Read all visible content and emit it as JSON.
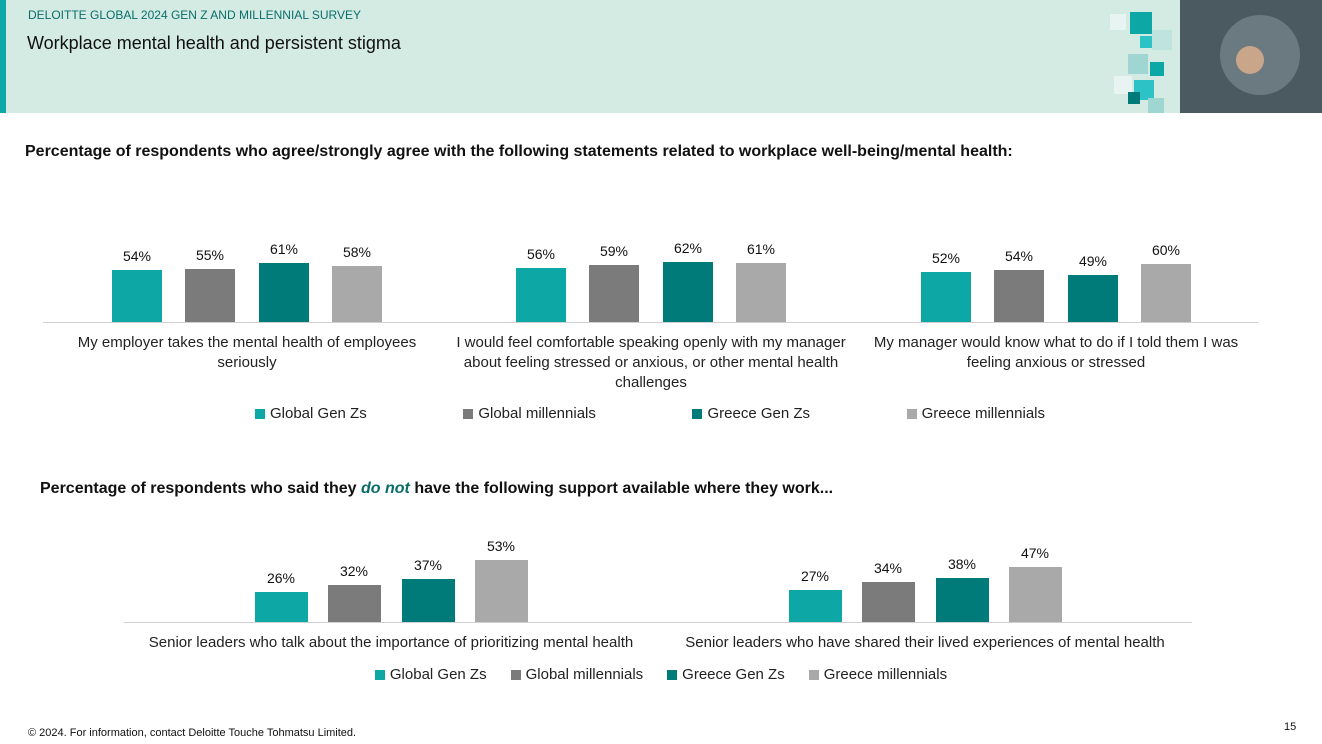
{
  "header": {
    "survey": "DELOITTE GLOBAL 2024 GEN Z AND MILLENNIAL SURVEY",
    "title": "Workplace mental health and persistent stigma"
  },
  "chart_data": [
    {
      "type": "bar",
      "title": "Percentage of respondents who agree/strongly agree with the following statements related to workplace well-being/mental health:",
      "categories": [
        "My employer takes the mental health of employees seriously",
        "I would feel comfortable speaking openly with my manager about feeling stressed or anxious, or other mental health challenges",
        "My manager would know what to do if I told them I was feeling anxious or stressed"
      ],
      "ylim": [
        0,
        100
      ],
      "series": [
        {
          "name": "Global Gen Zs",
          "color": "#0da7a5",
          "values": [
            54,
            56,
            52
          ],
          "value_labels": [
            "54%",
            "56%",
            "52%"
          ]
        },
        {
          "name": "Global millennials",
          "color": "#7b7b7b",
          "values": [
            55,
            59,
            54
          ],
          "value_labels": [
            "55%",
            "59%",
            "54%"
          ]
        },
        {
          "name": "Greece Gen Zs",
          "color": "#007b79",
          "values": [
            61,
            62,
            49
          ],
          "value_labels": [
            "61%",
            "62%",
            "49%"
          ]
        },
        {
          "name": "Greece millennials",
          "color": "#a9a9a9",
          "values": [
            58,
            61,
            60
          ],
          "value_labels": [
            "58%",
            "61%",
            "60%"
          ]
        }
      ]
    },
    {
      "type": "bar",
      "title": [
        "Percentage of respondents who said they",
        "do not",
        "have the following support available where they work..."
      ],
      "categories": [
        "Senior leaders who talk about the importance of prioritizing mental health",
        "Senior leaders who have shared their lived experiences of mental health"
      ],
      "ylim": [
        0,
        100
      ],
      "series": [
        {
          "name": "Global Gen Zs",
          "color": "#0da7a5",
          "values": [
            26,
            27
          ],
          "value_labels": [
            "26%",
            "27%"
          ]
        },
        {
          "name": "Global millennials",
          "color": "#7b7b7b",
          "values": [
            32,
            34
          ],
          "value_labels": [
            "32%",
            "34%"
          ]
        },
        {
          "name": "Greece Gen Zs",
          "color": "#007b79",
          "values": [
            37,
            38
          ],
          "value_labels": [
            "37%",
            "38%"
          ]
        },
        {
          "name": "Greece millennials",
          "color": "#a9a9a9",
          "values": [
            53,
            47
          ],
          "value_labels": [
            "53%",
            "47%"
          ]
        }
      ]
    }
  ],
  "footer": {
    "copyright": "© 2024. For information, contact Deloitte Touche Tohmatsu Limited.",
    "page_number": "15"
  }
}
